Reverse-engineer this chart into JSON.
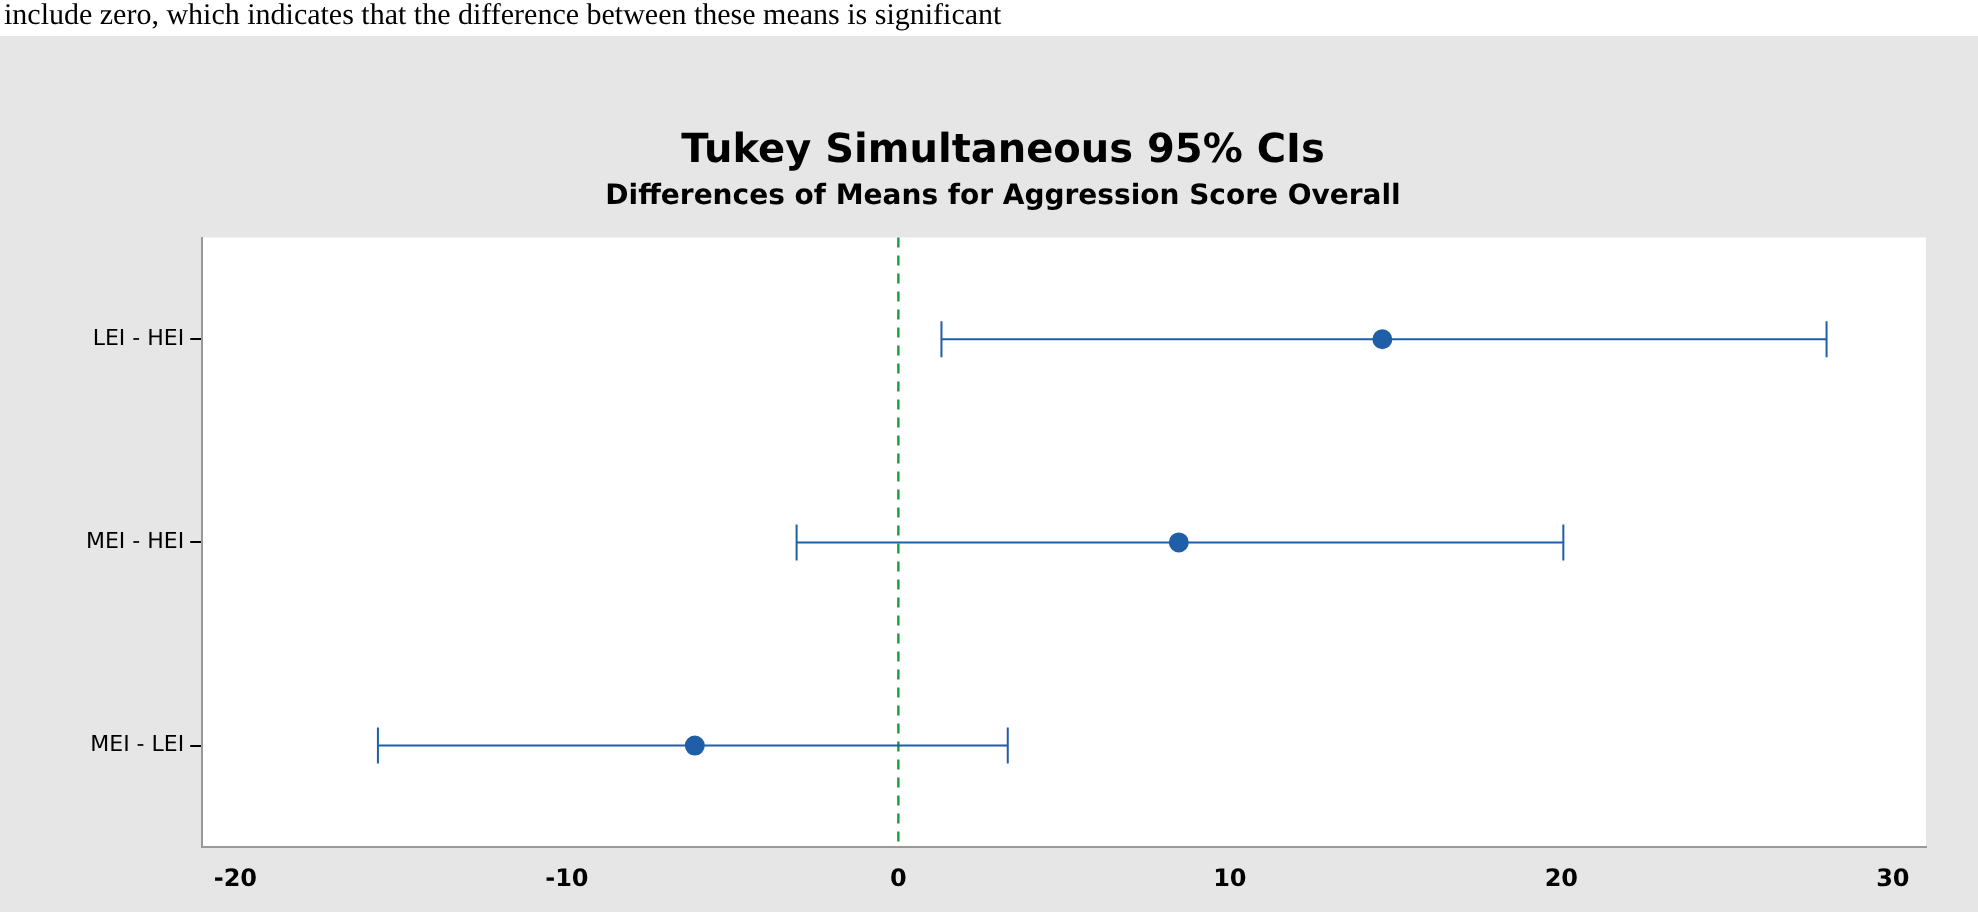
{
  "chart_data": {
    "type": "scatter",
    "orientation": "horizontal",
    "title": "Tukey Simultaneous 95% CIs",
    "subtitle": "Differences of Means for Aggression Score Overall",
    "categories": [
      "LEI - HEI",
      "MEI - HEI",
      "MEI - LEI"
    ],
    "values": [
      14.6,
      8.46,
      -6.14
    ],
    "errors": [
      [
        1.3,
        28.0
      ],
      [
        -3.07,
        20.06
      ],
      [
        -15.7,
        3.3
      ]
    ],
    "color": "#1f5fa8",
    "marker": "circle",
    "grid": false,
    "legend": false,
    "xlim": [
      -21,
      31
    ],
    "xticks": [
      -20,
      -10,
      0,
      10,
      20,
      30
    ],
    "ref_lines": [
      {
        "axis": "x",
        "value": 0,
        "color": "#1a9e3a",
        "line_style": "dashed"
      }
    ],
    "annotations": [
      "include zero, which indicates that the difference between these means is significant"
    ]
  }
}
